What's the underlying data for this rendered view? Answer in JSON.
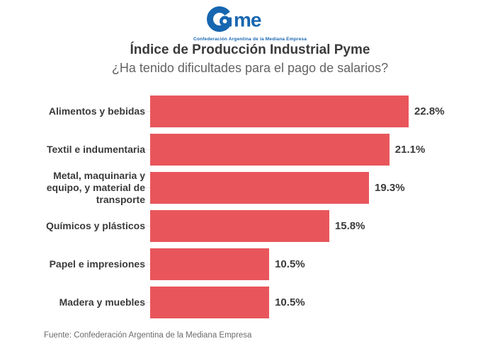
{
  "logo": {
    "name": "Came",
    "tagline": "Confederación Argentina de la Mediana Empresa",
    "color": "#1766b0"
  },
  "header": {
    "title": "Índice de Producción Industrial Pyme",
    "subtitle": "¿Ha tenido dificultades para el pago de salarios?"
  },
  "chart_data": {
    "type": "bar",
    "orientation": "horizontal",
    "title": "Índice de Producción Industrial Pyme",
    "subtitle": "¿Ha tenido dificultades para el pago de salarios?",
    "categories": [
      "Alimentos y bebidas",
      "Textil e indumentaria",
      "Metal, maquinaria y equipo, y material de transporte",
      "Químicos y plásticos",
      "Papel e impresiones",
      "Madera y muebles"
    ],
    "values": [
      22.8,
      21.1,
      19.3,
      15.8,
      10.5,
      10.5
    ],
    "value_labels": [
      "22.8%",
      "21.1%",
      "19.3%",
      "15.8%",
      "10.5%",
      "10.5%"
    ],
    "bar_color": "#e8565b",
    "xlabel": "",
    "ylabel": "",
    "xlim": [
      0,
      22.8
    ],
    "grid": false,
    "legend": false,
    "value_label_position": "end-of-bar"
  },
  "footer": {
    "source": "Fuente: Confederación Argentina de la Mediana Empresa"
  }
}
